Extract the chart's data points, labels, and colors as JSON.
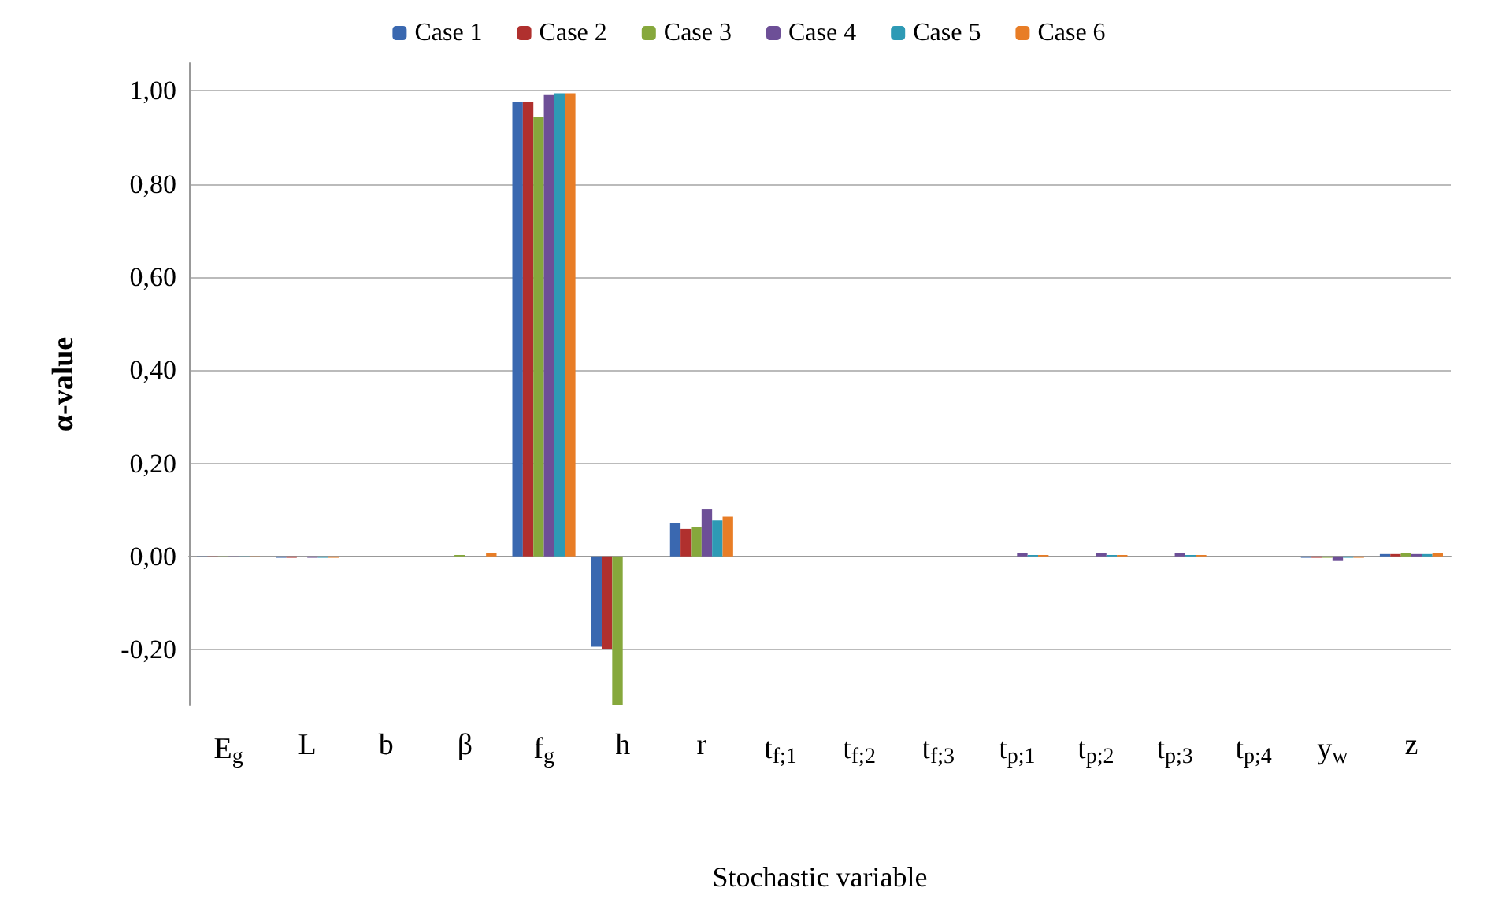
{
  "chart_data": {
    "type": "bar",
    "xlabel": "Stochastic variable",
    "ylabel": "α-value",
    "categories": [
      "E$_{g}$",
      "L",
      "b",
      "β",
      "f$_{g}$",
      "h",
      "r",
      "t$_{f;1}$",
      "t$_{f;2}$",
      "t$_{f;3}$",
      "t$_{p;1}$",
      "t$_{p;2}$",
      "t$_{p;3}$",
      "t$_{p;4}$",
      "y$_{w}$",
      "z"
    ],
    "series": [
      {
        "name": "Case 1",
        "color": "#3a68b0",
        "values": [
          -0.002,
          -0.003,
          0,
          0,
          0.976,
          -0.194,
          0.072,
          0,
          0,
          0,
          0,
          0,
          0,
          0,
          -0.003,
          0.005
        ]
      },
      {
        "name": "Case 2",
        "color": "#b0302e",
        "values": [
          -0.002,
          -0.003,
          0,
          0,
          0.976,
          -0.2,
          0.059,
          0,
          0,
          0,
          0,
          0,
          0,
          0,
          -0.003,
          0.005
        ]
      },
      {
        "name": "Case 3",
        "color": "#86a83c",
        "values": [
          -0.002,
          0,
          0,
          0.003,
          0.944,
          -0.32,
          0.063,
          0,
          0,
          0,
          0,
          0,
          0,
          0,
          -0.003,
          0.008
        ]
      },
      {
        "name": "Case 4",
        "color": "#6d4f97",
        "values": [
          -0.002,
          -0.003,
          0,
          0,
          0.991,
          0,
          0.101,
          0,
          0,
          0,
          0.008,
          0.008,
          0.008,
          0,
          -0.01,
          0.005
        ]
      },
      {
        "name": "Case 5",
        "color": "#2e9ab5",
        "values": [
          -0.002,
          -0.003,
          0,
          0,
          0.995,
          0,
          0.077,
          0,
          0,
          0,
          0.003,
          0.003,
          0.003,
          0,
          -0.003,
          0.005
        ]
      },
      {
        "name": "Case 6",
        "color": "#e87d26",
        "values": [
          -0.002,
          -0.003,
          0,
          0.008,
          0.995,
          0,
          0.085,
          0,
          0,
          0,
          0.003,
          0.003,
          0.003,
          0,
          -0.003,
          0.008
        ]
      }
    ],
    "ylim": [
      -0.32,
      1.06
    ],
    "yticks": [
      {
        "value": -0.2,
        "label": "-0,20"
      },
      {
        "value": 0,
        "label": "0,00"
      },
      {
        "value": 0.2,
        "label": "0,20"
      },
      {
        "value": 0.4,
        "label": "0,40"
      },
      {
        "value": 0.6,
        "label": "0,60"
      },
      {
        "value": 0.8,
        "label": "0,80"
      },
      {
        "value": 1,
        "label": "1,00"
      }
    ],
    "grid": "y",
    "legend": "top"
  }
}
